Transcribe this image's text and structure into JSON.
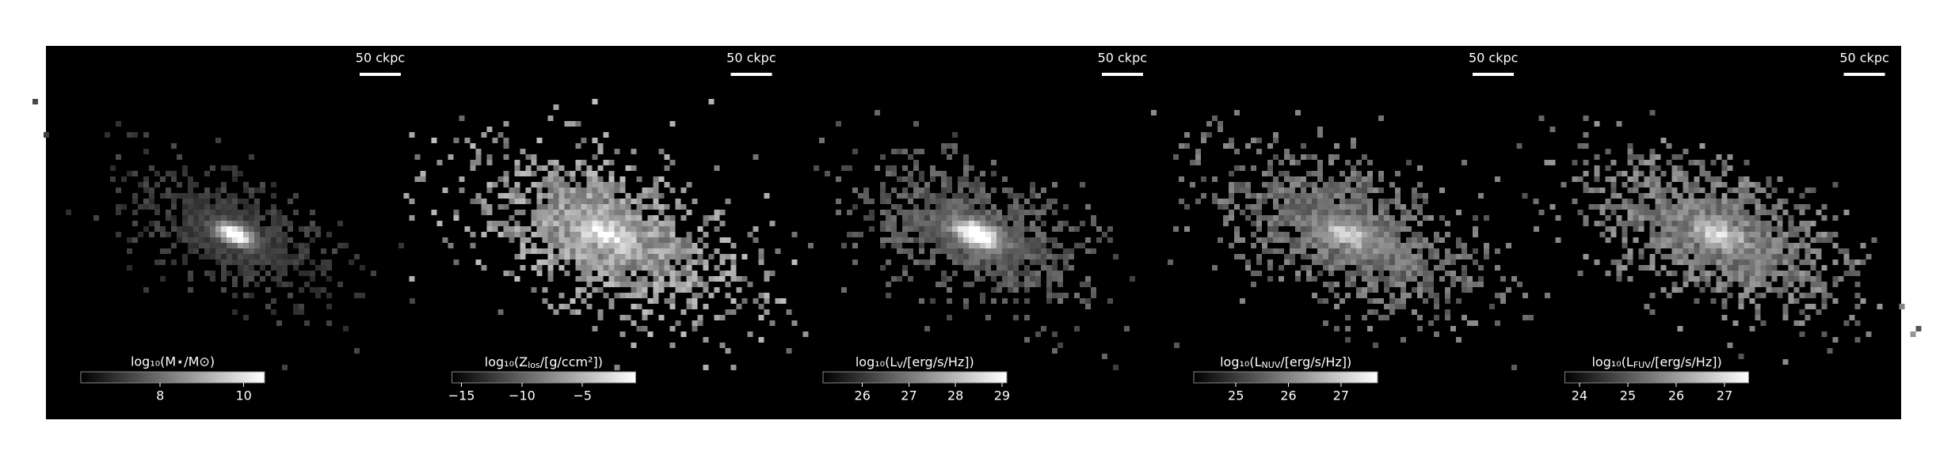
{
  "chart_data": [
    {
      "type": "image",
      "scale_label": "50 ckpc",
      "colorbar_label": "log₁₀(M⋆/M⊙)",
      "clim": [
        6.1,
        10.5
      ],
      "cticks": [
        8,
        10
      ]
    },
    {
      "type": "image",
      "scale_label": "50 ckpc",
      "colorbar_label": "log₁₀(Z_{los}/[g/ccm²])",
      "clim": [
        -15.8,
        -0.6
      ],
      "cticks": [
        {
          "value": -15,
          "label": "−15"
        },
        {
          "value": -10,
          "label": "−10"
        },
        {
          "value": -5,
          "label": "−5"
        }
      ]
    },
    {
      "type": "image",
      "scale_label": "50 ckpc",
      "colorbar_label": "log₁₀(L_{V}/[erg/s/Hz])",
      "clim": [
        25.15,
        29.1
      ],
      "cticks": [
        26,
        27,
        28,
        29
      ]
    },
    {
      "type": "image",
      "scale_label": "50 ckpc",
      "colorbar_label": "log₁₀(L_{NUV}/[erg/s/Hz])",
      "clim": [
        24.2,
        27.7
      ],
      "cticks": [
        25,
        26,
        27
      ]
    },
    {
      "type": "image",
      "scale_label": "50 ckpc",
      "colorbar_label": "log₁₀(L_{FUV}/[erg/s/Hz])",
      "clim": [
        23.7,
        27.5
      ],
      "cticks": [
        24,
        25,
        26,
        27
      ]
    }
  ]
}
